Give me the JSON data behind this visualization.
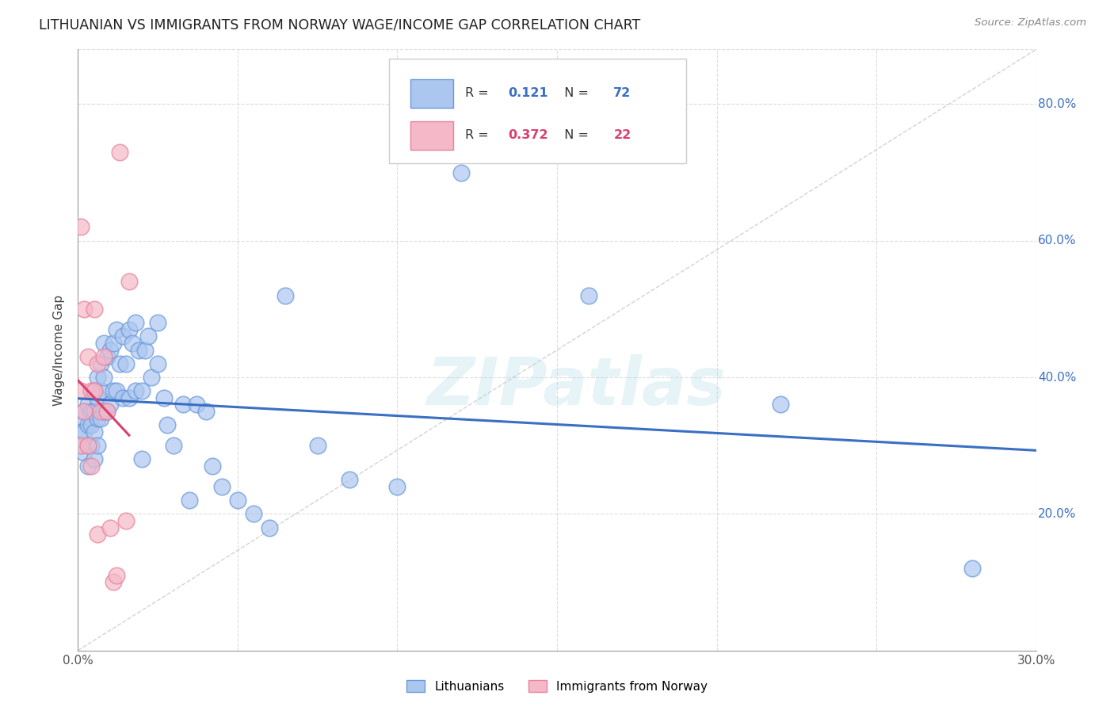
{
  "title": "LITHUANIAN VS IMMIGRANTS FROM NORWAY WAGE/INCOME GAP CORRELATION CHART",
  "source": "Source: ZipAtlas.com",
  "ylabel": "Wage/Income Gap",
  "xlim": [
    0.0,
    0.3
  ],
  "ylim": [
    0.0,
    0.88
  ],
  "x_ticks": [
    0.0,
    0.05,
    0.1,
    0.15,
    0.2,
    0.25,
    0.3
  ],
  "x_tick_labels": [
    "0.0%",
    "",
    "",
    "",
    "",
    "",
    "30.0%"
  ],
  "y_ticks": [
    0.2,
    0.4,
    0.6,
    0.8
  ],
  "y_tick_labels": [
    "20.0%",
    "40.0%",
    "60.0%",
    "80.0%"
  ],
  "blue_R": "0.121",
  "blue_N": "72",
  "pink_R": "0.372",
  "pink_N": "22",
  "blue_fill": "#adc6f0",
  "pink_fill": "#f5b8c8",
  "blue_edge": "#6899d8",
  "pink_edge": "#e8829a",
  "blue_line_color": "#3a6fc4",
  "pink_line_color": "#d94070",
  "diagonal_color": "#c8c8c8",
  "watermark": "ZIPatlas",
  "background_color": "#ffffff",
  "grid_color": "#dddddd",
  "blue_x": [
    0.001,
    0.001,
    0.001,
    0.002,
    0.002,
    0.002,
    0.003,
    0.003,
    0.003,
    0.003,
    0.004,
    0.004,
    0.004,
    0.005,
    0.005,
    0.005,
    0.005,
    0.006,
    0.006,
    0.006,
    0.006,
    0.007,
    0.007,
    0.007,
    0.008,
    0.008,
    0.008,
    0.009,
    0.009,
    0.01,
    0.01,
    0.011,
    0.011,
    0.012,
    0.012,
    0.013,
    0.014,
    0.014,
    0.015,
    0.016,
    0.016,
    0.017,
    0.018,
    0.018,
    0.019,
    0.02,
    0.02,
    0.021,
    0.022,
    0.023,
    0.025,
    0.025,
    0.027,
    0.028,
    0.03,
    0.033,
    0.035,
    0.037,
    0.04,
    0.042,
    0.045,
    0.05,
    0.055,
    0.06,
    0.065,
    0.075,
    0.085,
    0.1,
    0.12,
    0.16,
    0.22,
    0.28
  ],
  "blue_y": [
    0.34,
    0.32,
    0.3,
    0.35,
    0.32,
    0.29,
    0.36,
    0.33,
    0.3,
    0.27,
    0.35,
    0.33,
    0.3,
    0.38,
    0.35,
    0.32,
    0.28,
    0.4,
    0.37,
    0.34,
    0.3,
    0.42,
    0.38,
    0.34,
    0.45,
    0.4,
    0.35,
    0.43,
    0.35,
    0.44,
    0.36,
    0.45,
    0.38,
    0.47,
    0.38,
    0.42,
    0.46,
    0.37,
    0.42,
    0.47,
    0.37,
    0.45,
    0.48,
    0.38,
    0.44,
    0.38,
    0.28,
    0.44,
    0.46,
    0.4,
    0.48,
    0.42,
    0.37,
    0.33,
    0.3,
    0.36,
    0.22,
    0.36,
    0.35,
    0.27,
    0.24,
    0.22,
    0.2,
    0.18,
    0.52,
    0.3,
    0.25,
    0.24,
    0.7,
    0.52,
    0.36,
    0.12
  ],
  "pink_x": [
    0.001,
    0.001,
    0.001,
    0.002,
    0.002,
    0.003,
    0.003,
    0.004,
    0.004,
    0.005,
    0.005,
    0.006,
    0.006,
    0.007,
    0.008,
    0.009,
    0.01,
    0.011,
    0.012,
    0.013,
    0.015,
    0.016
  ],
  "pink_y": [
    0.62,
    0.38,
    0.3,
    0.5,
    0.35,
    0.43,
    0.3,
    0.38,
    0.27,
    0.5,
    0.38,
    0.42,
    0.17,
    0.35,
    0.43,
    0.35,
    0.18,
    0.1,
    0.11,
    0.73,
    0.19,
    0.54
  ]
}
